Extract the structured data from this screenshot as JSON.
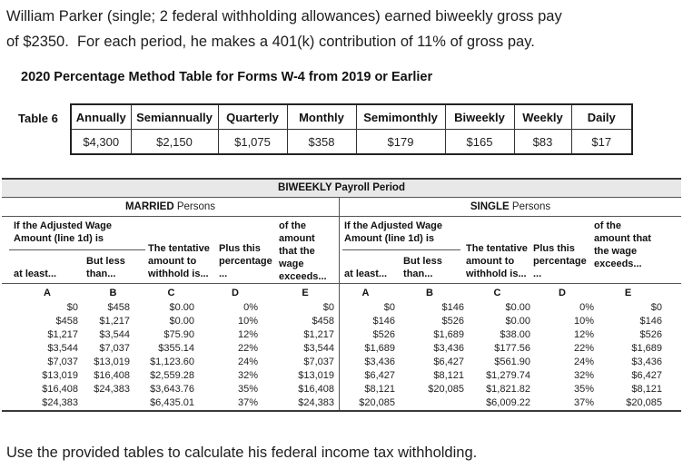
{
  "problem": {
    "text": "William Parker (single; 2 federal withholding allowances) earned biweekly gross pay\nof $2350.  For each period, he makes a 401(k) contribution of 11% of gross pay."
  },
  "section_title": "2020 Percentage Method Table for Forms W-4 from 2019 or Earlier",
  "table6": {
    "label": "Table 6",
    "headers": [
      "Annually",
      "Semiannually",
      "Quarterly",
      "Monthly",
      "Semimonthly",
      "Biweekly",
      "Weekly",
      "Daily"
    ],
    "values": [
      "$4,300",
      "$2,150",
      "$1,075",
      "$358",
      "$179",
      "$165",
      "$83",
      "$17"
    ]
  },
  "main_table": {
    "title": "BIWEEKLY Payroll Period",
    "halves": [
      {
        "group_bold": "MARRIED",
        "group_rest": "Persons",
        "wage_header": "If the Adjusted Wage Amount (line 1d) is",
        "columns": {
          "at_least": "at least...",
          "but_less": "But less than...",
          "tentative": "The tentative amount to withhold is...",
          "percentage": "Plus this percentage ...",
          "exceeds": "of the amount that the wage exceeds..."
        },
        "letters": [
          "A",
          "B",
          "C",
          "D",
          "E"
        ],
        "rows": [
          [
            "$0",
            "$458",
            "$0.00",
            "0%",
            "$0"
          ],
          [
            "$458",
            "$1,217",
            "$0.00",
            "10%",
            "$458"
          ],
          [
            "$1,217",
            "$3,544",
            "$75.90",
            "12%",
            "$1,217"
          ],
          [
            "$3,544",
            "$7,037",
            "$355.14",
            "22%",
            "$3,544"
          ],
          [
            "$7,037",
            "$13,019",
            "$1,123.60",
            "24%",
            "$7,037"
          ],
          [
            "$13,019",
            "$16,408",
            "$2,559.28",
            "32%",
            "$13,019"
          ],
          [
            "$16,408",
            "$24,383",
            "$3,643.76",
            "35%",
            "$16,408"
          ],
          [
            "$24,383",
            "",
            "$6,435.01",
            "37%",
            "$24,383"
          ]
        ]
      },
      {
        "group_bold": "SINGLE",
        "group_rest": "Persons",
        "wage_header": "If the Adjusted Wage Amount (line 1d) is",
        "columns": {
          "at_least": "at least...",
          "but_less": "But less than...",
          "tentative": "The tentative amount to withhold is...",
          "percentage": "Plus this percentage ...",
          "exceeds": "of the amount that the wage exceeds..."
        },
        "letters": [
          "A",
          "B",
          "C",
          "D",
          "E"
        ],
        "rows": [
          [
            "$0",
            "$146",
            "$0.00",
            "0%",
            "$0"
          ],
          [
            "$146",
            "$526",
            "$0.00",
            "10%",
            "$146"
          ],
          [
            "$526",
            "$1,689",
            "$38.00",
            "12%",
            "$526"
          ],
          [
            "$1,689",
            "$3,436",
            "$177.56",
            "22%",
            "$1,689"
          ],
          [
            "$3,436",
            "$6,427",
            "$561.90",
            "24%",
            "$3,436"
          ],
          [
            "$6,427",
            "$8,121",
            "$1,279.74",
            "32%",
            "$6,427"
          ],
          [
            "$8,121",
            "$20,085",
            "$1,821.82",
            "35%",
            "$8,121"
          ],
          [
            "$20,085",
            "",
            "$6,009.22",
            "37%",
            "$20,085"
          ]
        ]
      }
    ]
  },
  "question": "Use the provided tables to calculate his federal income tax withholding."
}
